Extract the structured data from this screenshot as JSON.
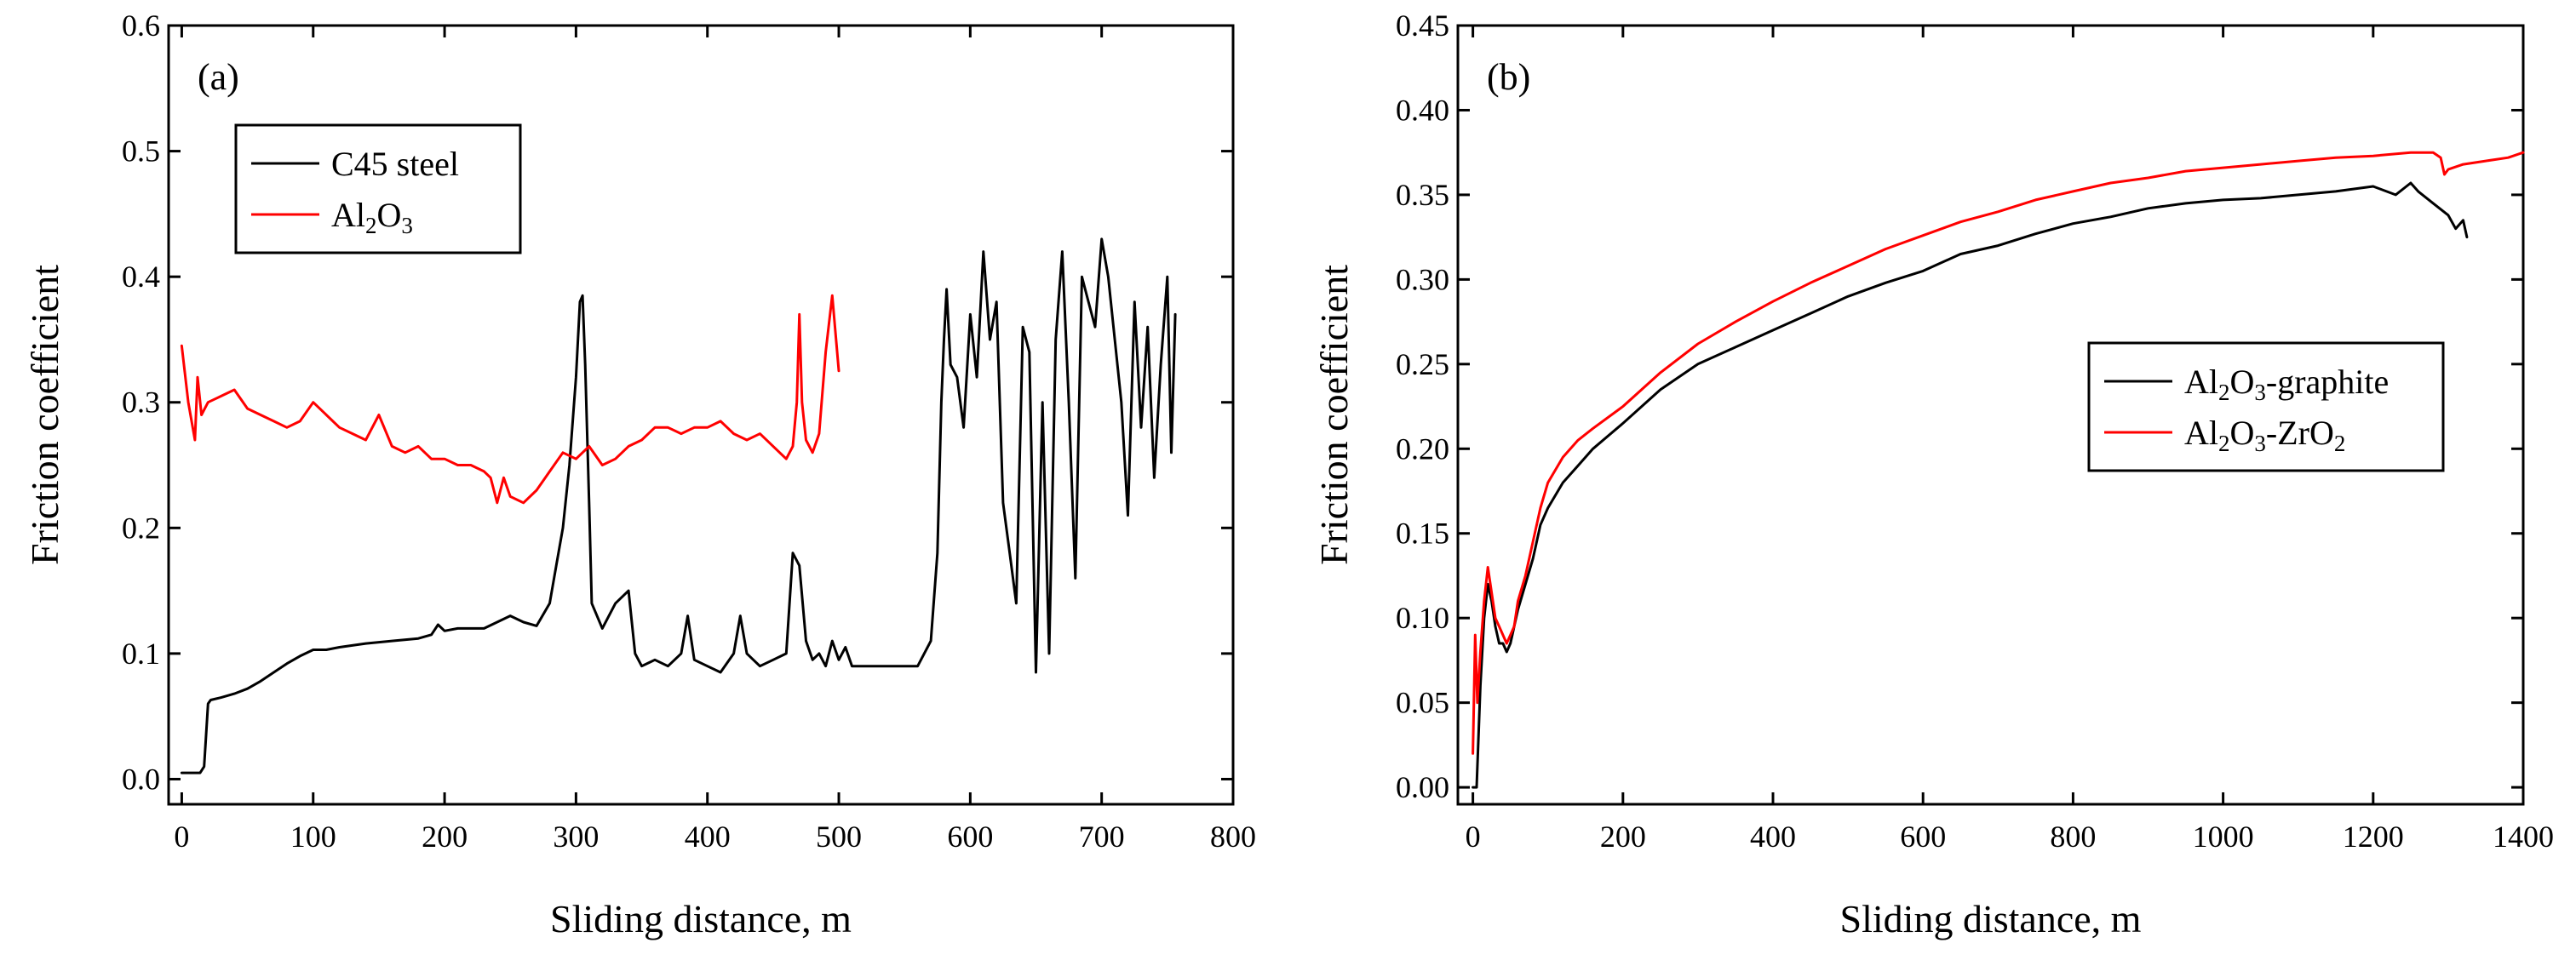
{
  "chart_data": [
    {
      "type": "line",
      "panel_label": "(a)",
      "xlabel": "Sliding distance, m",
      "ylabel": "Friction coefficient",
      "xlim": [
        -10,
        800
      ],
      "ylim": [
        -0.02,
        0.6
      ],
      "xticks": [
        "0",
        "100",
        "200",
        "300",
        "400",
        "500",
        "600",
        "700",
        "800"
      ],
      "yticks": [
        "0.0",
        "0.1",
        "0.2",
        "0.3",
        "0.4",
        "0.5",
        "0.6"
      ],
      "legend_position": "top-left",
      "series": [
        {
          "name": "C45 steel",
          "legend_parts": [
            {
              "t": "C45 steel",
              "sub": false
            }
          ],
          "color": "#000000",
          "x": [
            0,
            10,
            14,
            17,
            20,
            22,
            30,
            40,
            50,
            60,
            70,
            80,
            90,
            100,
            110,
            120,
            140,
            160,
            180,
            190,
            195,
            200,
            210,
            230,
            250,
            260,
            270,
            280,
            285,
            290,
            295,
            300,
            303,
            305,
            307,
            310,
            312,
            320,
            330,
            340,
            345,
            350,
            360,
            370,
            380,
            385,
            390,
            400,
            410,
            420,
            425,
            430,
            440,
            450,
            460,
            465,
            470,
            475,
            480,
            485,
            490,
            495,
            500,
            505,
            510,
            520,
            540,
            560,
            570,
            575,
            578,
            580,
            582,
            585,
            590,
            595,
            600,
            605,
            610,
            615,
            620,
            625,
            630,
            635,
            640,
            645,
            650,
            655,
            660,
            665,
            670,
            675,
            680,
            685,
            690,
            695,
            700,
            705,
            710,
            715,
            720,
            725,
            730,
            735,
            740,
            745,
            750,
            753,
            756
          ],
          "values": [
            0.005,
            0.005,
            0.005,
            0.01,
            0.06,
            0.063,
            0.065,
            0.068,
            0.072,
            0.078,
            0.085,
            0.092,
            0.098,
            0.103,
            0.103,
            0.105,
            0.108,
            0.11,
            0.112,
            0.115,
            0.123,
            0.118,
            0.12,
            0.12,
            0.13,
            0.125,
            0.122,
            0.14,
            0.17,
            0.2,
            0.25,
            0.32,
            0.38,
            0.385,
            0.33,
            0.22,
            0.14,
            0.12,
            0.14,
            0.15,
            0.1,
            0.09,
            0.095,
            0.09,
            0.1,
            0.13,
            0.095,
            0.09,
            0.085,
            0.1,
            0.13,
            0.1,
            0.09,
            0.095,
            0.1,
            0.18,
            0.17,
            0.11,
            0.095,
            0.1,
            0.09,
            0.11,
            0.095,
            0.105,
            0.09,
            0.09,
            0.09,
            0.09,
            0.11,
            0.18,
            0.3,
            0.35,
            0.39,
            0.33,
            0.32,
            0.28,
            0.37,
            0.32,
            0.42,
            0.35,
            0.38,
            0.22,
            0.18,
            0.14,
            0.36,
            0.34,
            0.085,
            0.3,
            0.1,
            0.35,
            0.42,
            0.3,
            0.16,
            0.4,
            0.38,
            0.36,
            0.43,
            0.4,
            0.35,
            0.3,
            0.21,
            0.38,
            0.28,
            0.36,
            0.24,
            0.33,
            0.4,
            0.26,
            0.37
          ]
        },
        {
          "name": "Al2O3",
          "legend_parts": [
            {
              "t": "Al",
              "sub": false
            },
            {
              "t": "2",
              "sub": true
            },
            {
              "t": "O",
              "sub": false
            },
            {
              "t": "3",
              "sub": true
            }
          ],
          "color": "#ff0000",
          "x": [
            0,
            5,
            10,
            12,
            15,
            20,
            30,
            40,
            50,
            60,
            70,
            80,
            90,
            100,
            110,
            120,
            130,
            140,
            150,
            160,
            170,
            180,
            190,
            200,
            210,
            220,
            230,
            235,
            240,
            245,
            250,
            260,
            270,
            280,
            290,
            300,
            310,
            320,
            330,
            340,
            350,
            360,
            370,
            380,
            390,
            400,
            410,
            420,
            430,
            440,
            450,
            460,
            465,
            468,
            470,
            472,
            475,
            480,
            485,
            490,
            495,
            500
          ],
          "values": [
            0.345,
            0.3,
            0.27,
            0.32,
            0.29,
            0.3,
            0.305,
            0.31,
            0.295,
            0.29,
            0.285,
            0.28,
            0.285,
            0.3,
            0.29,
            0.28,
            0.275,
            0.27,
            0.29,
            0.265,
            0.26,
            0.265,
            0.255,
            0.255,
            0.25,
            0.25,
            0.245,
            0.24,
            0.22,
            0.24,
            0.225,
            0.22,
            0.23,
            0.245,
            0.26,
            0.255,
            0.265,
            0.25,
            0.255,
            0.265,
            0.27,
            0.28,
            0.28,
            0.275,
            0.28,
            0.28,
            0.285,
            0.275,
            0.27,
            0.275,
            0.265,
            0.255,
            0.265,
            0.3,
            0.37,
            0.3,
            0.27,
            0.26,
            0.275,
            0.34,
            0.385,
            0.325
          ]
        }
      ]
    },
    {
      "type": "line",
      "panel_label": "(b)",
      "xlabel": "Sliding distance, m",
      "ylabel": "Friction coefficient",
      "xlim": [
        -20,
        1400
      ],
      "ylim": [
        -0.01,
        0.45
      ],
      "xticks": [
        "0",
        "200",
        "400",
        "600",
        "800",
        "1000",
        "1200",
        "1400"
      ],
      "yticks": [
        "0.00",
        "0.05",
        "0.10",
        "0.15",
        "0.20",
        "0.25",
        "0.30",
        "0.35",
        "0.40",
        "0.45"
      ],
      "legend_position": "center-right",
      "series": [
        {
          "name": "Al2O3-graphite",
          "legend_parts": [
            {
              "t": "Al",
              "sub": false
            },
            {
              "t": "2",
              "sub": true
            },
            {
              "t": "O",
              "sub": false
            },
            {
              "t": "3",
              "sub": true
            },
            {
              "t": "-graphite",
              "sub": false
            }
          ],
          "color": "#000000",
          "x": [
            0,
            5,
            10,
            15,
            20,
            25,
            30,
            35,
            40,
            45,
            50,
            55,
            60,
            70,
            80,
            90,
            100,
            120,
            140,
            160,
            200,
            250,
            300,
            350,
            400,
            450,
            500,
            550,
            600,
            650,
            700,
            750,
            800,
            850,
            900,
            950,
            1000,
            1050,
            1100,
            1150,
            1200,
            1230,
            1250,
            1260,
            1280,
            1300,
            1310,
            1320,
            1325
          ],
          "values": [
            0.0,
            0.0,
            0.06,
            0.1,
            0.12,
            0.11,
            0.095,
            0.085,
            0.085,
            0.08,
            0.085,
            0.095,
            0.105,
            0.12,
            0.135,
            0.155,
            0.165,
            0.18,
            0.19,
            0.2,
            0.215,
            0.235,
            0.25,
            0.26,
            0.27,
            0.28,
            0.29,
            0.298,
            0.305,
            0.315,
            0.32,
            0.327,
            0.333,
            0.337,
            0.342,
            0.345,
            0.347,
            0.348,
            0.35,
            0.352,
            0.355,
            0.35,
            0.357,
            0.352,
            0.345,
            0.338,
            0.33,
            0.335,
            0.325
          ]
        },
        {
          "name": "Al2O3-ZrO2",
          "legend_parts": [
            {
              "t": "Al",
              "sub": false
            },
            {
              "t": "2",
              "sub": true
            },
            {
              "t": "O",
              "sub": false
            },
            {
              "t": "3",
              "sub": true
            },
            {
              "t": "-ZrO",
              "sub": false
            },
            {
              "t": "2",
              "sub": true
            }
          ],
          "color": "#ff0000",
          "x": [
            0,
            3,
            6,
            10,
            15,
            20,
            25,
            30,
            35,
            40,
            45,
            50,
            55,
            60,
            70,
            80,
            90,
            100,
            120,
            140,
            160,
            200,
            250,
            300,
            350,
            400,
            450,
            500,
            550,
            600,
            650,
            700,
            750,
            800,
            850,
            900,
            950,
            1000,
            1050,
            1100,
            1150,
            1200,
            1250,
            1280,
            1290,
            1295,
            1300,
            1320,
            1350,
            1380,
            1400
          ],
          "values": [
            0.02,
            0.09,
            0.05,
            0.08,
            0.11,
            0.13,
            0.115,
            0.1,
            0.095,
            0.09,
            0.085,
            0.09,
            0.095,
            0.11,
            0.125,
            0.145,
            0.165,
            0.18,
            0.195,
            0.205,
            0.212,
            0.225,
            0.245,
            0.262,
            0.275,
            0.287,
            0.298,
            0.308,
            0.318,
            0.326,
            0.334,
            0.34,
            0.347,
            0.352,
            0.357,
            0.36,
            0.364,
            0.366,
            0.368,
            0.37,
            0.372,
            0.373,
            0.375,
            0.375,
            0.372,
            0.362,
            0.365,
            0.368,
            0.37,
            0.372,
            0.375
          ]
        }
      ]
    }
  ]
}
